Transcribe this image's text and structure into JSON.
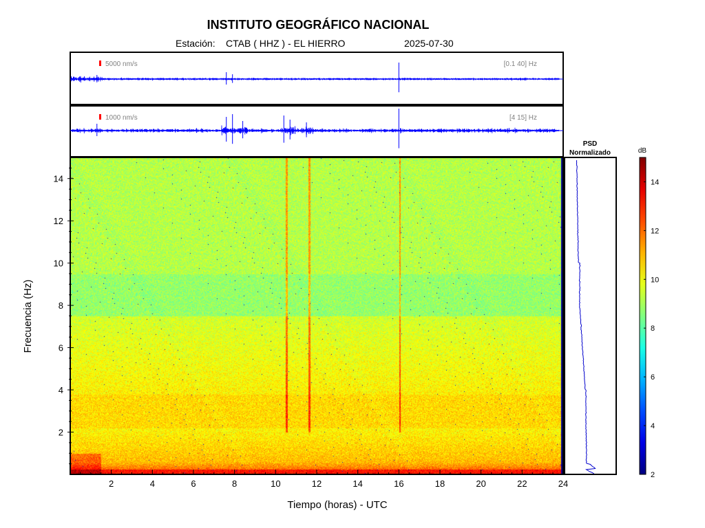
{
  "header": {
    "title": "INSTITUTO GEOGRÁFICO NACIONAL",
    "station_label": "Estación:",
    "station": "CTAB ( HHZ ) - EL HIERRO",
    "date": "2025-07-30"
  },
  "colors": {
    "trace": "#0000ff",
    "scale_marker": "#ff0000",
    "annotation": "#808080"
  },
  "chart_data": [
    {
      "type": "line",
      "name": "waveform-broadband",
      "scale_label": "5000 nm/s",
      "band_label": "[0.1 40] Hz",
      "x_range_hours": [
        0,
        24
      ],
      "data_end_hour": 23.8,
      "events_hours": [
        1.3,
        7.6,
        7.9,
        16.0
      ],
      "noise_envelope": "strong near start, decaying after 1.5 h"
    },
    {
      "type": "line",
      "name": "waveform-filtered",
      "scale_label": "1000 nm/s",
      "band_label": "[4 15] Hz",
      "x_range_hours": [
        0,
        24
      ],
      "data_end_hour": 23.8,
      "events_hours": [
        1.3,
        7.6,
        7.9,
        8.4,
        10.4,
        10.7,
        11.5,
        16.0
      ]
    },
    {
      "type": "heatmap",
      "name": "spectrogram",
      "xlabel": "Tiempo (horas) - UTC",
      "ylabel": "Frecuencia  (Hz)",
      "xlim": [
        0,
        24
      ],
      "ylim": [
        0,
        15
      ],
      "x_ticks": [
        2,
        4,
        6,
        8,
        10,
        12,
        14,
        16,
        18,
        20,
        22,
        24
      ],
      "y_ticks": [
        2,
        4,
        6,
        8,
        10,
        12,
        14
      ],
      "data_end_hour": 23.8,
      "event_lines_hours": [
        10.5,
        11.6,
        16.0
      ]
    },
    {
      "type": "line",
      "name": "psd",
      "title_line1": "PSD",
      "title_line2": "Normalizado"
    },
    {
      "type": "heatmap",
      "name": "colorbar",
      "unit": "dB",
      "range": [
        2,
        15
      ],
      "ticks": [
        2,
        4,
        6,
        8,
        10,
        12,
        14
      ]
    }
  ]
}
